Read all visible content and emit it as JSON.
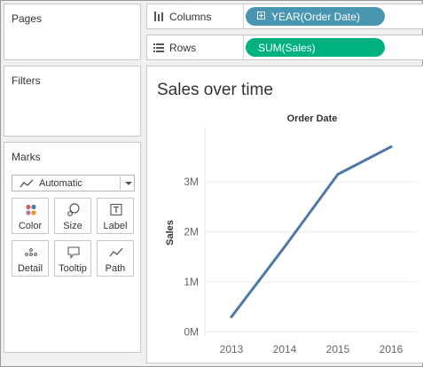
{
  "panels": {
    "pages_title": "Pages",
    "filters_title": "Filters",
    "marks_title": "Marks"
  },
  "marks": {
    "type_dropdown": {
      "selected": "Automatic",
      "icon": "line-chart-icon"
    },
    "buttons": [
      {
        "label": "Color",
        "icon": "color-dots-icon"
      },
      {
        "label": "Size",
        "icon": "size-bubble-icon"
      },
      {
        "label": "Label",
        "icon": "text-label-icon"
      },
      {
        "label": "Detail",
        "icon": "detail-dots-icon"
      },
      {
        "label": "Tooltip",
        "icon": "tooltip-speech-icon"
      },
      {
        "label": "Path",
        "icon": "path-line-icon"
      }
    ]
  },
  "shelves": {
    "columns": {
      "label": "Columns",
      "icon": "columns-icon",
      "pill": "YEAR(Order Date)",
      "pill_color": "#4996b2"
    },
    "rows": {
      "label": "Rows",
      "icon": "rows-icon",
      "pill": "SUM(Sales)",
      "pill_color": "#00b180"
    }
  },
  "sheet": {
    "title": "Sales over time"
  },
  "chart_data": {
    "type": "line",
    "title": "",
    "header": "Order Date",
    "xlabel": "",
    "ylabel": "Sales",
    "categories": [
      "2013",
      "2014",
      "2015",
      "2016"
    ],
    "series": [
      {
        "values": [
          300000,
          1700000,
          3150000,
          3700000
        ]
      }
    ],
    "ylim": [
      -100000,
      4100000
    ],
    "yticks": [
      0,
      1000000,
      2000000,
      3000000
    ],
    "ytick_labels": [
      "0M",
      "1M",
      "2M",
      "3M"
    ],
    "grid": "horizontal",
    "line_color": "#4e79a7"
  }
}
